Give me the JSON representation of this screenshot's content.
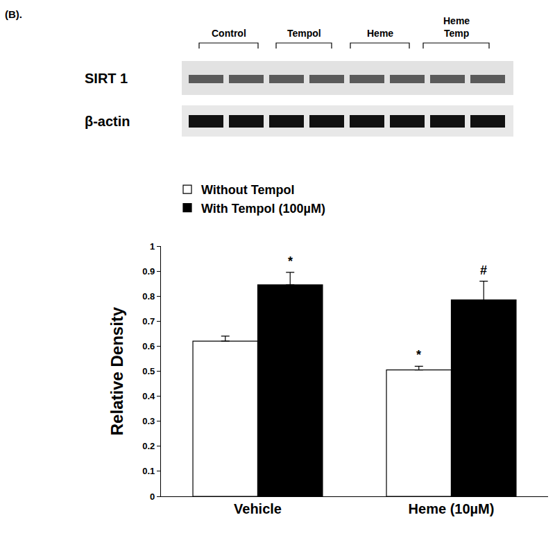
{
  "panel_label": "(B).",
  "blot": {
    "lanes": [
      [
        "Control"
      ],
      [
        "Tempol"
      ],
      [
        "Heme"
      ],
      [
        "Heme",
        "Temp"
      ]
    ],
    "rows": [
      "SIRT 1",
      "β-actin"
    ]
  },
  "chart_data": {
    "type": "bar",
    "y_label": "Relative Density",
    "categories": [
      "Vehicle",
      "Heme (10µM)"
    ],
    "series": [
      {
        "name": "Without Tempol",
        "color": "#ffffff",
        "values": [
          0.62,
          0.505
        ],
        "errors": [
          0.02,
          0.015
        ]
      },
      {
        "name": "With Tempol (100µM)",
        "color": "#000000",
        "values": [
          0.845,
          0.785
        ],
        "errors": [
          0.05,
          0.075
        ]
      }
    ],
    "annotations": [
      {
        "text": "*",
        "category": "Vehicle",
        "series": "With Tempol (100µM)"
      },
      {
        "text": "*",
        "category": "Heme (10µM)",
        "series": "Without Tempol"
      },
      {
        "text": "#",
        "category": "Heme (10µM)",
        "series": "With Tempol (100µM)"
      }
    ],
    "ylim": [
      0,
      1
    ],
    "yticks": [
      0,
      0.1,
      0.2,
      0.3,
      0.4,
      0.5,
      0.6,
      0.7,
      0.8,
      0.9,
      1
    ],
    "grid": false,
    "legend": "top-left"
  }
}
